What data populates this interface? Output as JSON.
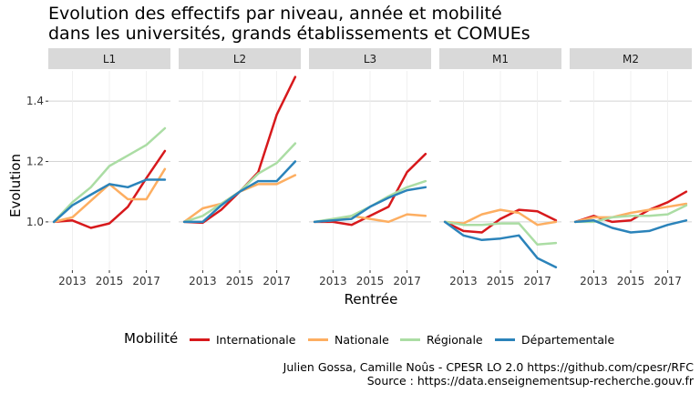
{
  "title_line1": "Evolution des effectifs par niveau, année et mobilité",
  "title_line2": "dans les universités, grands établissements et COMUEs",
  "caption_line1": "Julien Gossa, Camille Noûs - CPESR LO 2.0 https://github.com/cpesr/RFC",
  "caption_line2": "Source : https://data.enseignementsup-recherche.gouv.fr",
  "chart_data": {
    "type": "line",
    "xlabel": "Rentrée",
    "ylabel": "Evolution",
    "legend_title": "Mobilité",
    "legend_position": "bottom",
    "grid": true,
    "x": [
      2012,
      2013,
      2014,
      2015,
      2016,
      2017,
      2018
    ],
    "x_ticks": [
      2013,
      2015,
      2017
    ],
    "y_ticks": [
      1.0,
      1.2,
      1.4
    ],
    "ylim": [
      0.84,
      1.5
    ],
    "xlim": [
      2011.7,
      2018.3
    ],
    "series_meta": [
      {
        "name": "Internationale",
        "color": "#d7191c"
      },
      {
        "name": "Nationale",
        "color": "#fdae61"
      },
      {
        "name": "Régionale",
        "color": "#abdda4"
      },
      {
        "name": "Départementale",
        "color": "#2b83ba"
      }
    ],
    "panels": [
      {
        "label": "L1",
        "series": [
          {
            "name": "Internationale",
            "values": [
              1.0,
              1.005,
              0.98,
              0.995,
              1.05,
              1.145,
              1.235
            ]
          },
          {
            "name": "Nationale",
            "values": [
              1.0,
              1.015,
              1.07,
              1.125,
              1.075,
              1.075,
              1.175
            ]
          },
          {
            "name": "Régionale",
            "values": [
              1.0,
              1.065,
              1.115,
              1.185,
              1.22,
              1.255,
              1.31
            ]
          },
          {
            "name": "Départementale",
            "values": [
              1.0,
              1.055,
              1.09,
              1.125,
              1.115,
              1.14,
              1.14
            ]
          }
        ]
      },
      {
        "label": "L2",
        "series": [
          {
            "name": "Internationale",
            "values": [
              1.0,
              0.997,
              1.04,
              1.1,
              1.165,
              1.355,
              1.48
            ]
          },
          {
            "name": "Nationale",
            "values": [
              1.0,
              1.045,
              1.06,
              1.1,
              1.125,
              1.125,
              1.155
            ]
          },
          {
            "name": "Régionale",
            "values": [
              1.0,
              1.02,
              1.06,
              1.1,
              1.16,
              1.195,
              1.26
            ]
          },
          {
            "name": "Départementale",
            "values": [
              1.0,
              1.0,
              1.055,
              1.1,
              1.135,
              1.135,
              1.2
            ]
          }
        ]
      },
      {
        "label": "L3",
        "series": [
          {
            "name": "Internationale",
            "values": [
              1.0,
              1.0,
              0.99,
              1.02,
              1.05,
              1.165,
              1.225
            ]
          },
          {
            "name": "Nationale",
            "values": [
              1.0,
              1.005,
              1.02,
              1.01,
              1.0,
              1.025,
              1.02
            ]
          },
          {
            "name": "Régionale",
            "values": [
              1.0,
              1.01,
              1.02,
              1.05,
              1.085,
              1.115,
              1.135
            ]
          },
          {
            "name": "Départementale",
            "values": [
              1.0,
              1.005,
              1.01,
              1.05,
              1.08,
              1.105,
              1.115
            ]
          }
        ]
      },
      {
        "label": "M1",
        "series": [
          {
            "name": "Internationale",
            "values": [
              1.0,
              0.97,
              0.965,
              1.01,
              1.04,
              1.035,
              1.005
            ]
          },
          {
            "name": "Nationale",
            "values": [
              1.0,
              0.995,
              1.025,
              1.04,
              1.03,
              0.99,
              1.0
            ]
          },
          {
            "name": "Régionale",
            "values": [
              1.0,
              0.99,
              0.99,
              0.995,
              0.995,
              0.925,
              0.93
            ]
          },
          {
            "name": "Départementale",
            "values": [
              1.0,
              0.955,
              0.94,
              0.945,
              0.955,
              0.88,
              0.85
            ]
          }
        ]
      },
      {
        "label": "M2",
        "series": [
          {
            "name": "Internationale",
            "values": [
              1.0,
              1.02,
              1.0,
              1.005,
              1.04,
              1.065,
              1.1
            ]
          },
          {
            "name": "Nationale",
            "values": [
              1.0,
              1.015,
              1.015,
              1.03,
              1.04,
              1.05,
              1.06
            ]
          },
          {
            "name": "Régionale",
            "values": [
              1.0,
              1.0,
              1.015,
              1.02,
              1.02,
              1.025,
              1.055
            ]
          },
          {
            "name": "Départementale",
            "values": [
              1.0,
              1.005,
              0.98,
              0.965,
              0.97,
              0.99,
              1.005
            ]
          }
        ]
      }
    ]
  }
}
